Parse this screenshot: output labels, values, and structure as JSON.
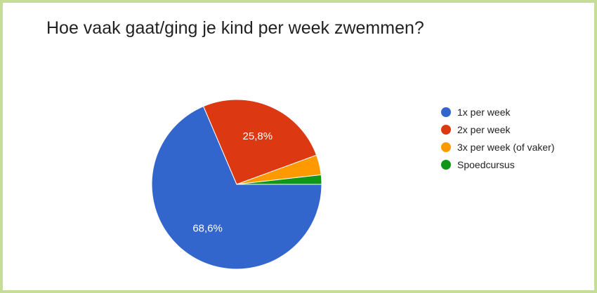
{
  "chart_data": {
    "type": "pie",
    "title": "Hoe vaak gaat/ging je kind per week zwemmen?",
    "slices": [
      {
        "label": "1x per week",
        "value": 68.6,
        "display": "68,6%",
        "color": "#3366cc"
      },
      {
        "label": "2x per week",
        "value": 25.8,
        "display": "25,8%",
        "color": "#dc3912"
      },
      {
        "label": "3x per week (of vaker)",
        "value": 3.8,
        "display": "",
        "color": "#ff9900"
      },
      {
        "label": "Spoedcursus",
        "value": 1.8,
        "display": "",
        "color": "#109618"
      }
    ],
    "legend_position": "right"
  }
}
